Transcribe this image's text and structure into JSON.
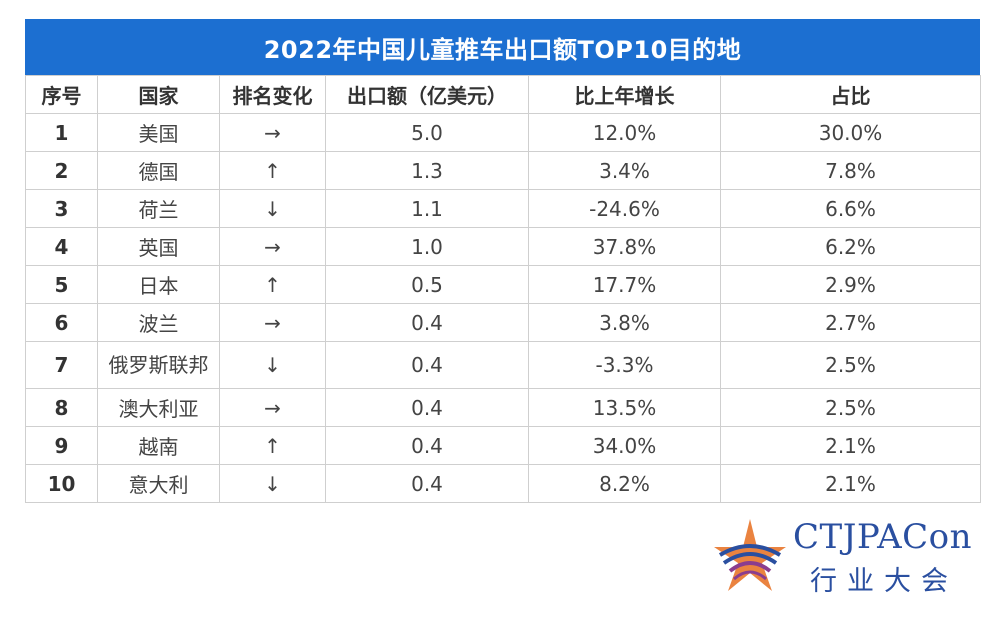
{
  "title": "2022年中国儿童推车出口额TOP10目的地",
  "headers": [
    "序号",
    "国家",
    "排名变化",
    "出口额（亿美元）",
    "比上年增长",
    "占比"
  ],
  "rows": [
    {
      "rank": "1",
      "country": "美国",
      "change": "→",
      "value": "5.0",
      "growth": "12.0%",
      "share": "30.0%"
    },
    {
      "rank": "2",
      "country": "德国",
      "change": "↑",
      "value": "1.3",
      "growth": "3.4%",
      "share": "7.8%"
    },
    {
      "rank": "3",
      "country": "荷兰",
      "change": "↓",
      "value": "1.1",
      "growth": "-24.6%",
      "share": "6.6%"
    },
    {
      "rank": "4",
      "country": "英国",
      "change": "→",
      "value": "1.0",
      "growth": "37.8%",
      "share": "6.2%"
    },
    {
      "rank": "5",
      "country": "日本",
      "change": "↑",
      "value": "0.5",
      "growth": "17.7%",
      "share": "2.9%"
    },
    {
      "rank": "6",
      "country": "波兰",
      "change": "→",
      "value": "0.4",
      "growth": "3.8%",
      "share": "2.7%"
    },
    {
      "rank": "7",
      "country": "俄罗斯联邦",
      "change": "↓",
      "value": "0.4",
      "growth": "-3.3%",
      "share": "2.5%"
    },
    {
      "rank": "8",
      "country": "澳大利亚",
      "change": "→",
      "value": "0.4",
      "growth": "13.5%",
      "share": "2.5%"
    },
    {
      "rank": "9",
      "country": "越南",
      "change": "↑",
      "value": "0.4",
      "growth": "34.0%",
      "share": "2.1%"
    },
    {
      "rank": "10",
      "country": "意大利",
      "change": "↓",
      "value": "0.4",
      "growth": "8.2%",
      "share": "2.1%"
    }
  ],
  "logo": {
    "name": "CTJPACon",
    "subtitle": "行业大会"
  },
  "colors": {
    "title_bg": "#1c6fd1",
    "logo_blue": "#2a4fa0",
    "logo_orange": "#e8762b",
    "logo_purple": "#8a3d8f"
  }
}
